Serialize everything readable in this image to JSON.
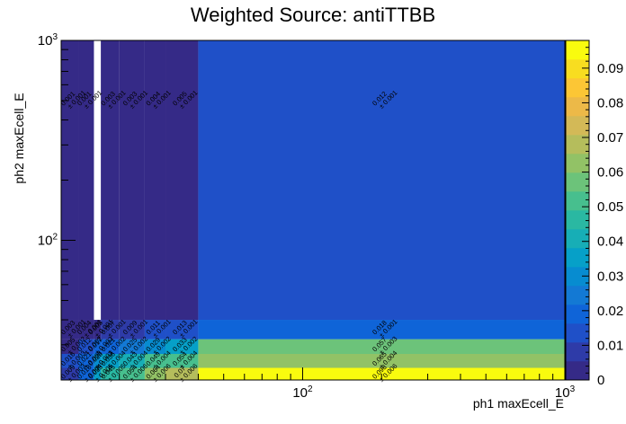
{
  "chart_data": {
    "type": "heatmap",
    "title": "Weighted Source: antiTTBB",
    "xlabel": "ph1 maxEcell_E",
    "ylabel": "ph2 maxEcell_E",
    "x_scale": "log",
    "y_scale": "log",
    "xlim": [
      12,
      1000
    ],
    "ylim": [
      20,
      1000
    ],
    "x_tick_labels": [
      "10^2",
      "10^3"
    ],
    "y_tick_labels": [
      "10^2",
      "10^3"
    ],
    "colorbar": {
      "min": 0,
      "max": 0.098,
      "tick_values": [
        0,
        0.01,
        0.02,
        0.03,
        0.04,
        0.05,
        0.06,
        0.07,
        0.08,
        0.09
      ],
      "tick_labels": [
        "0",
        "0.01",
        "0.02",
        "0.03",
        "0.04",
        "0.05",
        "0.06",
        "0.07",
        "0.08",
        "0.09"
      ],
      "palette": [
        "#352a87",
        "#2e3ba8",
        "#1f50c8",
        "#0f64d8",
        "#1379d4",
        "#078cd0",
        "#06a0c8",
        "#17aeb6",
        "#2ab8a2",
        "#47bf8e",
        "#6cc37a",
        "#92c266",
        "#b5bd5c",
        "#d3b957",
        "#ecb948",
        "#fcc635",
        "#f8dd20",
        "#f9fb0e"
      ]
    },
    "x_bins": [
      12,
      14,
      16,
      17,
      20,
      25,
      30,
      40,
      1000
    ],
    "y_bins": [
      20,
      23,
      27,
      32,
      40,
      1000
    ],
    "cells": [
      {
        "x": 0,
        "y": 0,
        "value": 0.009,
        "error": 0.003
      },
      {
        "x": 1,
        "y": 0,
        "value": 0.018,
        "error": 0.004
      },
      {
        "x": 2,
        "y": 0,
        "value": 0.033,
        "error": 0.005
      },
      {
        "x": 3,
        "y": 0,
        "value": 0.045,
        "error": 0.005
      },
      {
        "x": 4,
        "y": 0,
        "value": 0.054,
        "error": 0.006
      },
      {
        "x": 5,
        "y": 0,
        "value": 0.064,
        "error": 0.006
      },
      {
        "x": 6,
        "y": 0,
        "value": 0.07,
        "error": 0.006
      },
      {
        "x": 7,
        "y": 0,
        "value": 0.098,
        "error": 0.006
      },
      {
        "x": 0,
        "y": 1,
        "value": 0.016,
        "error": 0.003
      },
      {
        "x": 1,
        "y": 1,
        "value": 0.021,
        "error": 0.003
      },
      {
        "x": 2,
        "y": 1,
        "value": 0.028,
        "error": 0.003
      },
      {
        "x": 3,
        "y": 1,
        "value": 0.036,
        "error": 0.004
      },
      {
        "x": 4,
        "y": 1,
        "value": 0.043,
        "error": 0.004
      },
      {
        "x": 5,
        "y": 1,
        "value": 0.049,
        "error": 0.004
      },
      {
        "x": 6,
        "y": 1,
        "value": 0.054,
        "error": 0.004
      },
      {
        "x": 7,
        "y": 1,
        "value": 0.065,
        "error": 0.004
      },
      {
        "x": 0,
        "y": 2,
        "value": 0.005,
        "error": 0.002
      },
      {
        "x": 1,
        "y": 2,
        "value": 0.012,
        "error": 0.002
      },
      {
        "x": 2,
        "y": 2,
        "value": 0.017,
        "error": 0.002
      },
      {
        "x": 3,
        "y": 2,
        "value": 0.021,
        "error": 0.002
      },
      {
        "x": 4,
        "y": 2,
        "value": 0.025,
        "error": 0.002
      },
      {
        "x": 5,
        "y": 2,
        "value": 0.029,
        "error": 0.002
      },
      {
        "x": 6,
        "y": 2,
        "value": 0.033,
        "error": 0.002
      },
      {
        "x": 7,
        "y": 2,
        "value": 0.057,
        "error": 0.003
      },
      {
        "x": 0,
        "y": 3,
        "value": 0.003,
        "error": 0.001
      },
      {
        "x": 1,
        "y": 3,
        "value": 0.004,
        "error": 0.001
      },
      {
        "x": 2,
        "y": 3,
        "value": 0.005,
        "error": 0.001
      },
      {
        "x": 3,
        "y": 3,
        "value": 0.007,
        "error": 0.001
      },
      {
        "x": 4,
        "y": 3,
        "value": 0.009,
        "error": 0.001
      },
      {
        "x": 5,
        "y": 3,
        "value": 0.011,
        "error": 0.001
      },
      {
        "x": 6,
        "y": 3,
        "value": 0.013,
        "error": 0.001
      },
      {
        "x": 7,
        "y": 3,
        "value": 0.018,
        "error": 0.001
      },
      {
        "x": 0,
        "y": 4,
        "value": 0.001,
        "error": 0.001
      },
      {
        "x": 1,
        "y": 4,
        "value": 0.001,
        "error": 0.001
      },
      {
        "x": 3,
        "y": 4,
        "value": 0.003,
        "error": 0.001
      },
      {
        "x": 4,
        "y": 4,
        "value": 0.003,
        "error": 0.001
      },
      {
        "x": 5,
        "y": 4,
        "value": 0.004,
        "error": 0.001
      },
      {
        "x": 6,
        "y": 4,
        "value": 0.005,
        "error": 0.001
      },
      {
        "x": 7,
        "y": 4,
        "value": 0.012,
        "error": 0.001
      }
    ]
  }
}
